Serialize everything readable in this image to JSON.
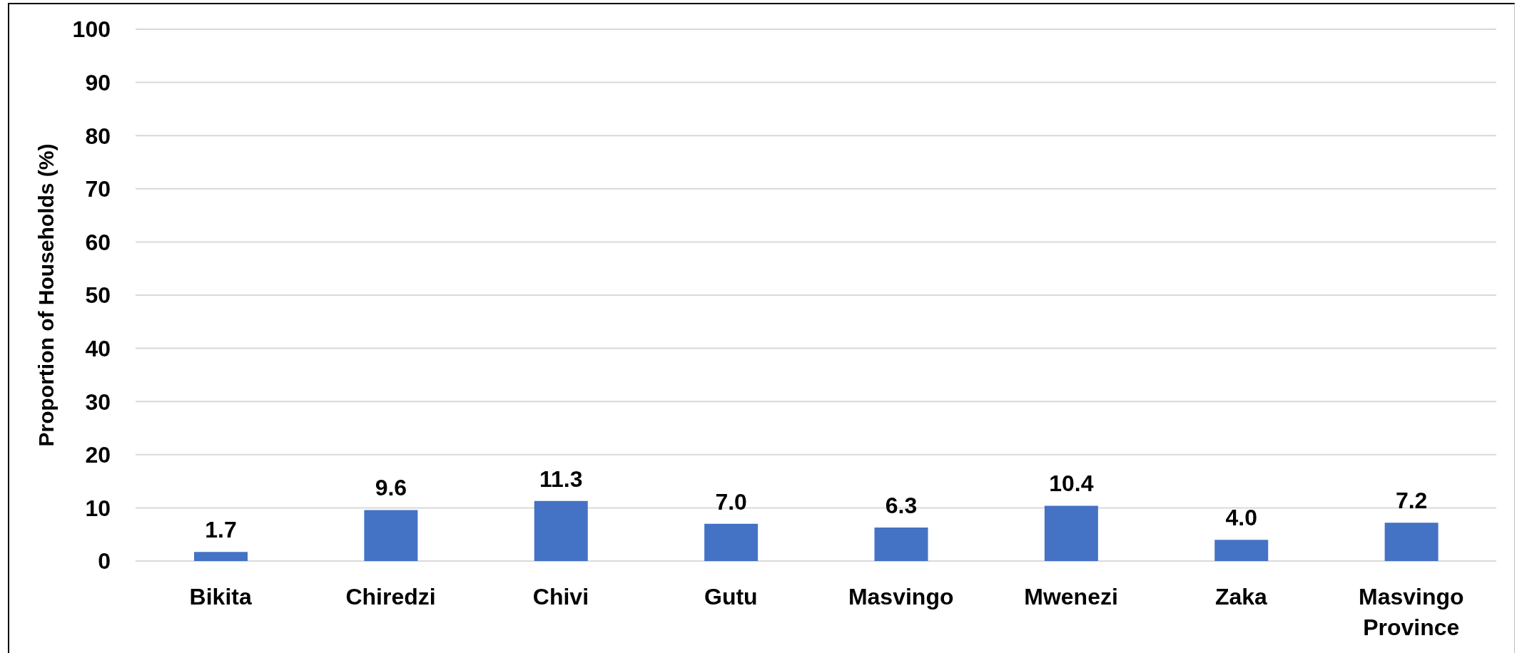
{
  "chart_data": {
    "type": "bar",
    "ylabel": "Proportion of Households (%)",
    "categories": [
      "Bikita",
      "Chiredzi",
      "Chivi",
      "Gutu",
      "Masvingo",
      "Mwenezi",
      "Zaka",
      "Masvingo Province"
    ],
    "values": [
      1.7,
      9.6,
      11.3,
      7.0,
      6.3,
      10.4,
      4.0,
      7.2
    ],
    "value_labels": [
      "1.7",
      "9.6",
      "11.3",
      "7.0",
      "6.3",
      "10.4",
      "4.0",
      "7.2"
    ],
    "color": "#4472c4",
    "ylim": [
      0,
      100
    ],
    "yticks": [
      0,
      10,
      20,
      30,
      40,
      50,
      60,
      70,
      80,
      90,
      100
    ],
    "grid": "y"
  }
}
